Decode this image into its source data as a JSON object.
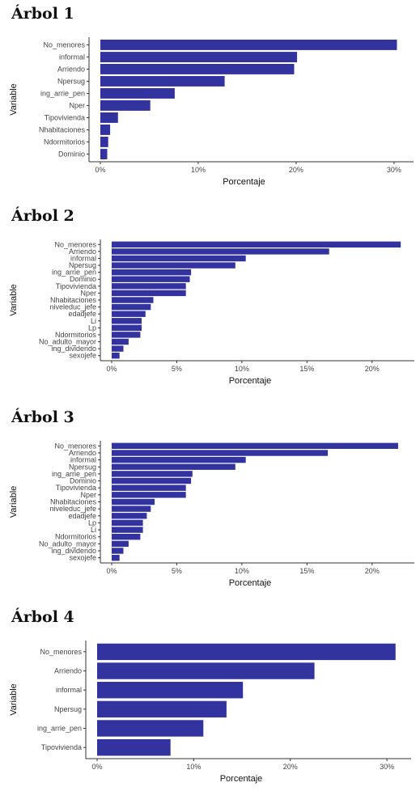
{
  "accent_color": "#3333a0",
  "chart_data": [
    {
      "type": "bar",
      "orientation": "horizontal",
      "title": "Árbol 1",
      "xlabel": "Porcentaje",
      "ylabel": "Variable",
      "xlim": [
        0,
        31
      ],
      "xticks": [
        "0%",
        "10%",
        "20%",
        "30%"
      ],
      "grid": false,
      "categories": [
        "No_menores",
        "informal",
        "Arriendo",
        "Npersug",
        "ing_arrie_pen",
        "Nper",
        "Tipovivienda",
        "Nhabitaciones",
        "Ndormitorios",
        "Dominio"
      ],
      "values": [
        30.3,
        20.1,
        19.8,
        12.7,
        7.6,
        5.1,
        1.8,
        1.0,
        0.8,
        0.7
      ]
    },
    {
      "type": "bar",
      "orientation": "horizontal",
      "title": "Árbol 2",
      "xlabel": "Porcentaje",
      "ylabel": "Variable",
      "xlim": [
        0,
        22.5
      ],
      "xticks": [
        "0%",
        "5%",
        "10%",
        "15%",
        "20%"
      ],
      "grid": false,
      "categories": [
        "No_menores",
        "Arriendo",
        "informal",
        "Npersug",
        "ing_arrie_pen",
        "Dominio",
        "Tipovivienda",
        "Nper",
        "Nhabitaciones",
        "niveleduc_jefe",
        "edadjefe",
        "Li",
        "Lp",
        "Ndormitorios",
        "No_adulto_mayor",
        "ing_dividendo",
        "sexojefe"
      ],
      "values": [
        22.2,
        16.7,
        10.3,
        9.5,
        6.1,
        6.0,
        5.7,
        5.7,
        3.2,
        3.0,
        2.6,
        2.3,
        2.3,
        2.2,
        1.3,
        0.9,
        0.6
      ]
    },
    {
      "type": "bar",
      "orientation": "horizontal",
      "title": "Árbol 3",
      "xlabel": "Porcentaje",
      "ylabel": "Variable",
      "xlim": [
        0,
        22.5
      ],
      "xticks": [
        "0%",
        "5%",
        "10%",
        "15%",
        "20%"
      ],
      "grid": false,
      "categories": [
        "No_menores",
        "Arriendo",
        "informal",
        "Npersug",
        "ing_arrie_pen",
        "Dominio",
        "Tipovivienda",
        "Nper",
        "Nhabitaciones",
        "niveleduc_jefe",
        "edadjefe",
        "Lp",
        "Li",
        "Ndormitorios",
        "No_adulto_mayor",
        "ing_dividendo",
        "sexojefe"
      ],
      "values": [
        22.0,
        16.6,
        10.3,
        9.5,
        6.2,
        6.1,
        5.7,
        5.7,
        3.3,
        3.0,
        2.7,
        2.4,
        2.4,
        2.2,
        1.3,
        0.9,
        0.6
      ]
    },
    {
      "type": "bar",
      "orientation": "horizontal",
      "title": "Árbol 4",
      "xlabel": "Porcentaje",
      "ylabel": "Variable",
      "xlim": [
        0,
        31.5
      ],
      "xticks": [
        "0%",
        "10%",
        "20%",
        "30%"
      ],
      "grid": false,
      "categories": [
        "No_menores",
        "Arriendo",
        "informal",
        "Npersug",
        "ing_arrie_pen",
        "Tipovivienda"
      ],
      "values": [
        30.9,
        22.5,
        15.1,
        13.4,
        11.0,
        7.6
      ]
    }
  ]
}
